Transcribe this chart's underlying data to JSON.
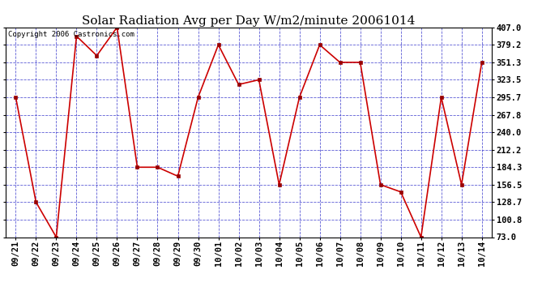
{
  "title": "Solar Radiation Avg per Day W/m2/minute 20061014",
  "copyright": "Copyright 2006 Castronics.com",
  "dates": [
    "09/21",
    "09/22",
    "09/23",
    "09/24",
    "09/25",
    "09/26",
    "09/27",
    "09/28",
    "09/29",
    "09/30",
    "10/01",
    "10/02",
    "10/03",
    "10/04",
    "10/05",
    "10/06",
    "10/07",
    "10/08",
    "10/09",
    "10/10",
    "10/11",
    "10/12",
    "10/13",
    "10/14"
  ],
  "values": [
    295.7,
    128.7,
    73.0,
    393.0,
    362.0,
    407.0,
    184.3,
    184.3,
    170.0,
    295.7,
    379.2,
    316.0,
    323.5,
    156.5,
    295.7,
    379.2,
    351.3,
    351.3,
    156.5,
    145.0,
    73.0,
    295.7,
    156.5,
    351.3
  ],
  "ylim": [
    73.0,
    407.0
  ],
  "yticks": [
    73.0,
    100.8,
    128.7,
    156.5,
    184.3,
    212.2,
    240.0,
    267.8,
    295.7,
    323.5,
    351.3,
    379.2,
    407.0
  ],
  "line_color": "#cc0000",
  "marker_color": "#990000",
  "bg_color": "#ffffff",
  "plot_bg_color": "#ffffff",
  "grid_color": "#3333cc",
  "title_fontsize": 11,
  "tick_label_fontsize": 7.5,
  "copyright_fontsize": 6.5
}
